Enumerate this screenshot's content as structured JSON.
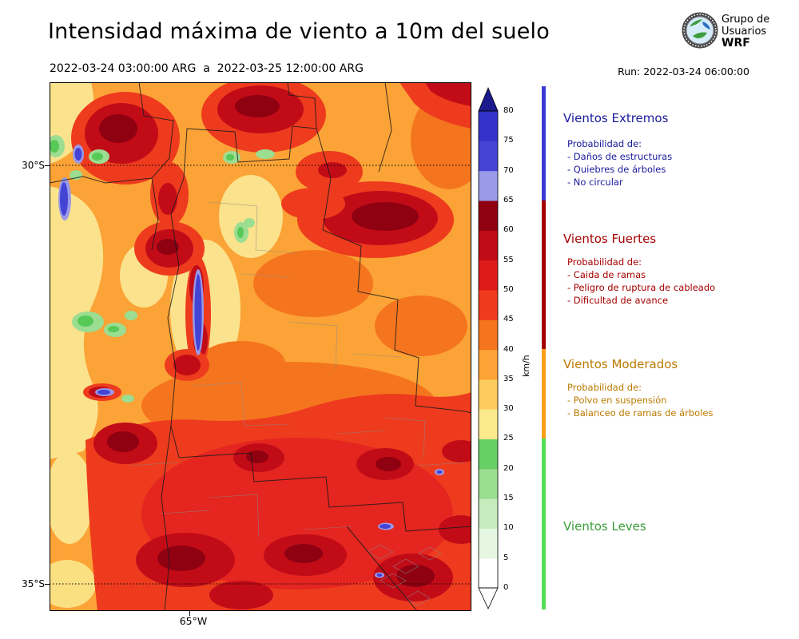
{
  "header": {
    "title": "Intensidad máxima de viento a 10m del suelo",
    "period": "2022-03-24 03:00:00 ARG  a  2022-03-25 12:00:00 ARG",
    "run_label": "Run: 2022-03-24 06:00:00",
    "logo": {
      "org_line1": "Grupo de",
      "org_line2": "Usuarios",
      "acronym": "WRF"
    }
  },
  "map": {
    "lat_labels": [
      "30°S",
      "35°S"
    ],
    "lon_labels": [
      "65°W"
    ]
  },
  "colorbar": {
    "unit": "km/h",
    "ticks": [
      "0",
      "5",
      "10",
      "15",
      "20",
      "25",
      "30",
      "35",
      "40",
      "45",
      "50",
      "55",
      "60",
      "65",
      "70",
      "75",
      "80"
    ],
    "colors": [
      "#ffffff",
      "#e6f7e1",
      "#c6ecbe",
      "#9bdd91",
      "#66cf66",
      "#fbe98c",
      "#fdcb5e",
      "#fba336",
      "#f5751f",
      "#ee3b1e",
      "#dd1c1a",
      "#c10c18",
      "#8f0011",
      "#9a9ae8",
      "#4444d4",
      "#3333cc"
    ],
    "over_color": "#1a1a8c",
    "under_color": "#ffffff"
  },
  "legend": {
    "categories": [
      {
        "name": "Vientos Extremos",
        "text_color": "#1a1a9c",
        "strip_color": "#3c3cd4",
        "prob_label": "Probabilidad de:",
        "items": [
          "- Daños de estructuras",
          "- Quiebres de árboles",
          "- No circular"
        ]
      },
      {
        "name": "Vientos Fuertes",
        "text_color": "#a50000",
        "strip_color": "#a50000",
        "prob_label": "Probabilidad de:",
        "items": [
          "- Caida de ramas",
          "- Peligro de ruptura de cableado",
          "- Dificultad de avance"
        ]
      },
      {
        "name": "Vientos Moderados",
        "text_color": "#bb7a00",
        "strip_color": "#ffa018",
        "prob_label": "Probabilidad de:",
        "items": [
          "- Polvo en suspensión",
          "- Balanceo de ramas de árboles"
        ]
      },
      {
        "name": "Vientos Leves",
        "text_color": "#3a9e3a",
        "strip_color": "#55dd55",
        "prob_label": "",
        "items": []
      }
    ]
  },
  "chart_data": {
    "type": "heatmap",
    "title": "Intensidad máxima de viento a 10m del suelo",
    "variable": "Intensidad máxima de viento a 10 m del suelo",
    "unit": "km/h",
    "period_start": "2022-03-24 03:00:00 ARG",
    "period_end": "2022-03-25 12:00:00 ARG",
    "model_run": "2022-03-24 06:00:00",
    "source": "Grupo de Usuarios WRF",
    "levels_kmh": [
      0,
      5,
      10,
      15,
      20,
      25,
      30,
      35,
      40,
      45,
      50,
      55,
      60,
      65,
      70,
      75,
      80
    ],
    "colorbar_extend": "both",
    "lat_ticks": [
      "30°S",
      "35°S"
    ],
    "lon_ticks": [
      "65°W"
    ],
    "categories": [
      {
        "name": "Vientos Leves",
        "range_kmh": [
          0,
          25
        ]
      },
      {
        "name": "Vientos Moderados",
        "range_kmh": [
          25,
          40
        ]
      },
      {
        "name": "Vientos Fuertes",
        "range_kmh": [
          40,
          65
        ]
      },
      {
        "name": "Vientos Extremos",
        "range_kmh": [
          65,
          80
        ]
      }
    ]
  }
}
